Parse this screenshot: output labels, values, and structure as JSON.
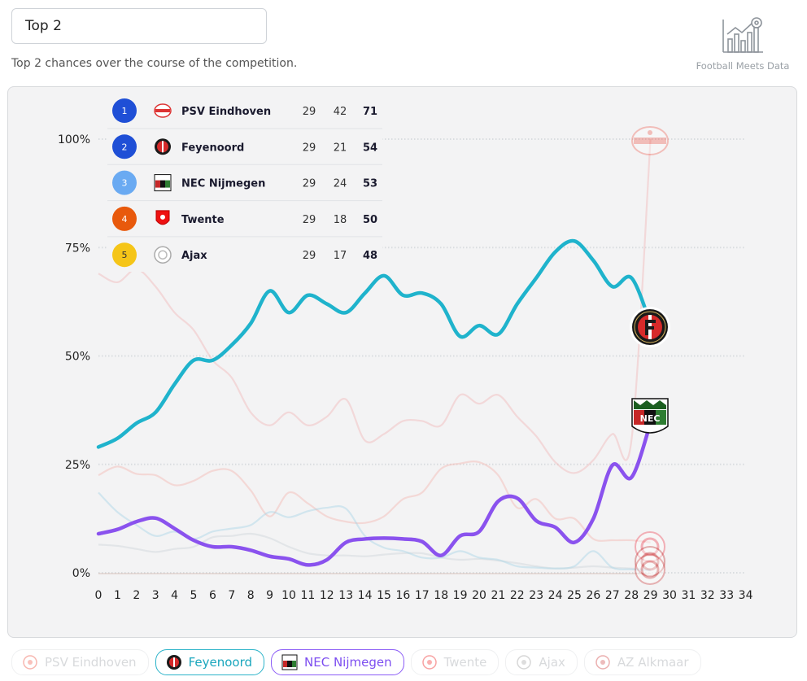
{
  "header": {
    "select_value": "Top 2",
    "subtitle": "Top 2 chances over the course of the competition.",
    "brand": "Football Meets Data"
  },
  "colors": {
    "feyenoord": "#1fb3cc",
    "nec": "#8a52ee",
    "psv": "#f2b8b8",
    "twente": "#f3b7b2",
    "ajax": "#cfd4d9",
    "az": "#a9d4e6",
    "rank1": "#1f4fd6",
    "rank2": "#1f4fd6",
    "rank3": "#6aaaf2",
    "rank4": "#e8590c",
    "rank5": "#f5c518"
  },
  "standings": [
    {
      "rank": "1",
      "team": "PSV Eindhoven",
      "played": "29",
      "gd": "42",
      "pts": "71"
    },
    {
      "rank": "2",
      "team": "Feyenoord",
      "played": "29",
      "gd": "21",
      "pts": "54"
    },
    {
      "rank": "3",
      "team": "NEC Nijmegen",
      "played": "29",
      "gd": "24",
      "pts": "53"
    },
    {
      "rank": "4",
      "team": "Twente",
      "played": "29",
      "gd": "18",
      "pts": "50"
    },
    {
      "rank": "5",
      "team": "Ajax",
      "played": "29",
      "gd": "17",
      "pts": "48"
    }
  ],
  "legend": [
    {
      "label": "PSV Eindhoven",
      "state": "inactive",
      "icon": "psv-crest-icon"
    },
    {
      "label": "Feyenoord",
      "state": "active",
      "icon": "feyenoord-crest-icon"
    },
    {
      "label": "NEC Nijmegen",
      "state": "active",
      "icon": "nec-crest-icon"
    },
    {
      "label": "Twente",
      "state": "inactive",
      "icon": "twente-crest-icon"
    },
    {
      "label": "Ajax",
      "state": "inactive",
      "icon": "ajax-crest-icon"
    },
    {
      "label": "AZ Alkmaar",
      "state": "inactive",
      "icon": "az-crest-icon"
    }
  ],
  "chart_data": {
    "type": "line",
    "title": "",
    "xlabel": "",
    "ylabel": "",
    "x_ticks": [
      "0",
      "1",
      "2",
      "3",
      "4",
      "5",
      "6",
      "7",
      "8",
      "9",
      "10",
      "11",
      "12",
      "13",
      "14",
      "15",
      "16",
      "17",
      "18",
      "19",
      "20",
      "21",
      "22",
      "23",
      "24",
      "25",
      "26",
      "27",
      "28",
      "29",
      "30",
      "31",
      "32",
      "33",
      "34"
    ],
    "xlim": [
      0,
      34
    ],
    "ylim": [
      0,
      100
    ],
    "y_ticks": [
      "0%",
      "25%",
      "50%",
      "75%",
      "100%"
    ],
    "y_tick_values": [
      0,
      25,
      50,
      75,
      100
    ],
    "grid": "horizontal dotted",
    "series": [
      {
        "name": "Feyenoord",
        "emphasis": true,
        "color_key": "feyenoord",
        "x": [
          0,
          1,
          2,
          3,
          4,
          5,
          6,
          7,
          8,
          9,
          10,
          11,
          12,
          13,
          14,
          15,
          16,
          17,
          18,
          19,
          20,
          21,
          22,
          23,
          24,
          25,
          26,
          27,
          28,
          29
        ],
        "values": [
          29,
          31,
          34.5,
          37,
          43.5,
          49,
          49,
          52.5,
          57.5,
          65,
          60,
          64,
          62,
          60,
          64.5,
          68.5,
          64,
          64.5,
          62,
          54.5,
          57,
          55,
          62,
          68,
          74,
          76.5,
          72,
          66,
          68,
          57.5
        ]
      },
      {
        "name": "NEC Nijmegen",
        "emphasis": true,
        "color_key": "nec",
        "x": [
          0,
          1,
          2,
          3,
          4,
          5,
          6,
          7,
          8,
          9,
          10,
          11,
          12,
          13,
          14,
          15,
          16,
          17,
          18,
          19,
          20,
          21,
          22,
          23,
          24,
          25,
          26,
          27,
          28,
          29
        ],
        "values": [
          9,
          10,
          11.8,
          12.6,
          10.2,
          7.5,
          6,
          6,
          5.2,
          3.8,
          3.2,
          1.8,
          3,
          7,
          7.8,
          8,
          7.8,
          7.2,
          4,
          8.5,
          9.5,
          16.5,
          17.2,
          12,
          10.5,
          7,
          12.5,
          24.8,
          22,
          34.5
        ]
      },
      {
        "name": "PSV Eindhoven",
        "emphasis": false,
        "color_key": "psv",
        "x": [
          0,
          1,
          2,
          3,
          4,
          5,
          6,
          7,
          8,
          9,
          10,
          11,
          12,
          13,
          14,
          15,
          16,
          17,
          18,
          19,
          20,
          21,
          22,
          23,
          24,
          25,
          26,
          27,
          28,
          29
        ],
        "values": [
          69,
          67,
          70,
          66,
          60,
          56,
          49,
          45,
          37,
          34,
          37,
          34,
          36,
          40,
          30.5,
          32,
          35,
          35,
          34,
          41,
          39,
          41,
          36,
          31.5,
          25.5,
          23,
          26,
          32,
          30.5,
          100
        ]
      },
      {
        "name": "Twente",
        "emphasis": false,
        "color_key": "twente",
        "x": [
          0,
          1,
          2,
          3,
          4,
          5,
          6,
          7,
          8,
          9,
          10,
          11,
          12,
          13,
          14,
          15,
          16,
          17,
          18,
          19,
          20,
          21,
          22,
          23,
          24,
          25,
          26,
          27,
          28,
          29
        ],
        "values": [
          22.5,
          24.5,
          22.8,
          22.5,
          20.2,
          21.2,
          23.5,
          23.5,
          19,
          13,
          18.5,
          16,
          13,
          11.8,
          11.5,
          13,
          17,
          18.5,
          24,
          25.2,
          25.5,
          22.5,
          15,
          17,
          12.5,
          12.5,
          7.8,
          7.5,
          7.5,
          7
        ]
      },
      {
        "name": "Ajax",
        "emphasis": false,
        "color_key": "ajax",
        "x": [
          0,
          1,
          2,
          3,
          4,
          5,
          6,
          7,
          8,
          9,
          10,
          11,
          12,
          13,
          14,
          15,
          16,
          17,
          18,
          19,
          20,
          21,
          22,
          23,
          24,
          25,
          26,
          27,
          28,
          29
        ],
        "values": [
          6.5,
          6.2,
          5.5,
          4.8,
          5.5,
          6,
          8.2,
          8.5,
          9,
          8,
          6,
          4.5,
          4,
          4,
          3.8,
          4.2,
          4.5,
          4.5,
          3.5,
          3,
          3.2,
          2.8,
          2.2,
          1.5,
          1,
          1.2,
          1.5,
          1.2,
          1,
          0.8
        ]
      },
      {
        "name": "AZ Alkmaar",
        "emphasis": false,
        "color_key": "az",
        "x": [
          0,
          1,
          2,
          3,
          4,
          5,
          6,
          7,
          8,
          9,
          10,
          11,
          12,
          13,
          14,
          15,
          16,
          17,
          18,
          19,
          20,
          21,
          22,
          23,
          24,
          25,
          26,
          27,
          28,
          29
        ],
        "values": [
          18.5,
          14,
          11,
          8.5,
          9.5,
          7.8,
          9.5,
          10.2,
          11,
          14,
          12.8,
          14.2,
          15,
          14.8,
          8.5,
          5.8,
          5,
          3.5,
          3.5,
          5,
          3.5,
          3,
          1.5,
          1.2,
          1,
          1.5,
          5,
          1.2,
          0.8,
          0.5
        ]
      }
    ]
  }
}
